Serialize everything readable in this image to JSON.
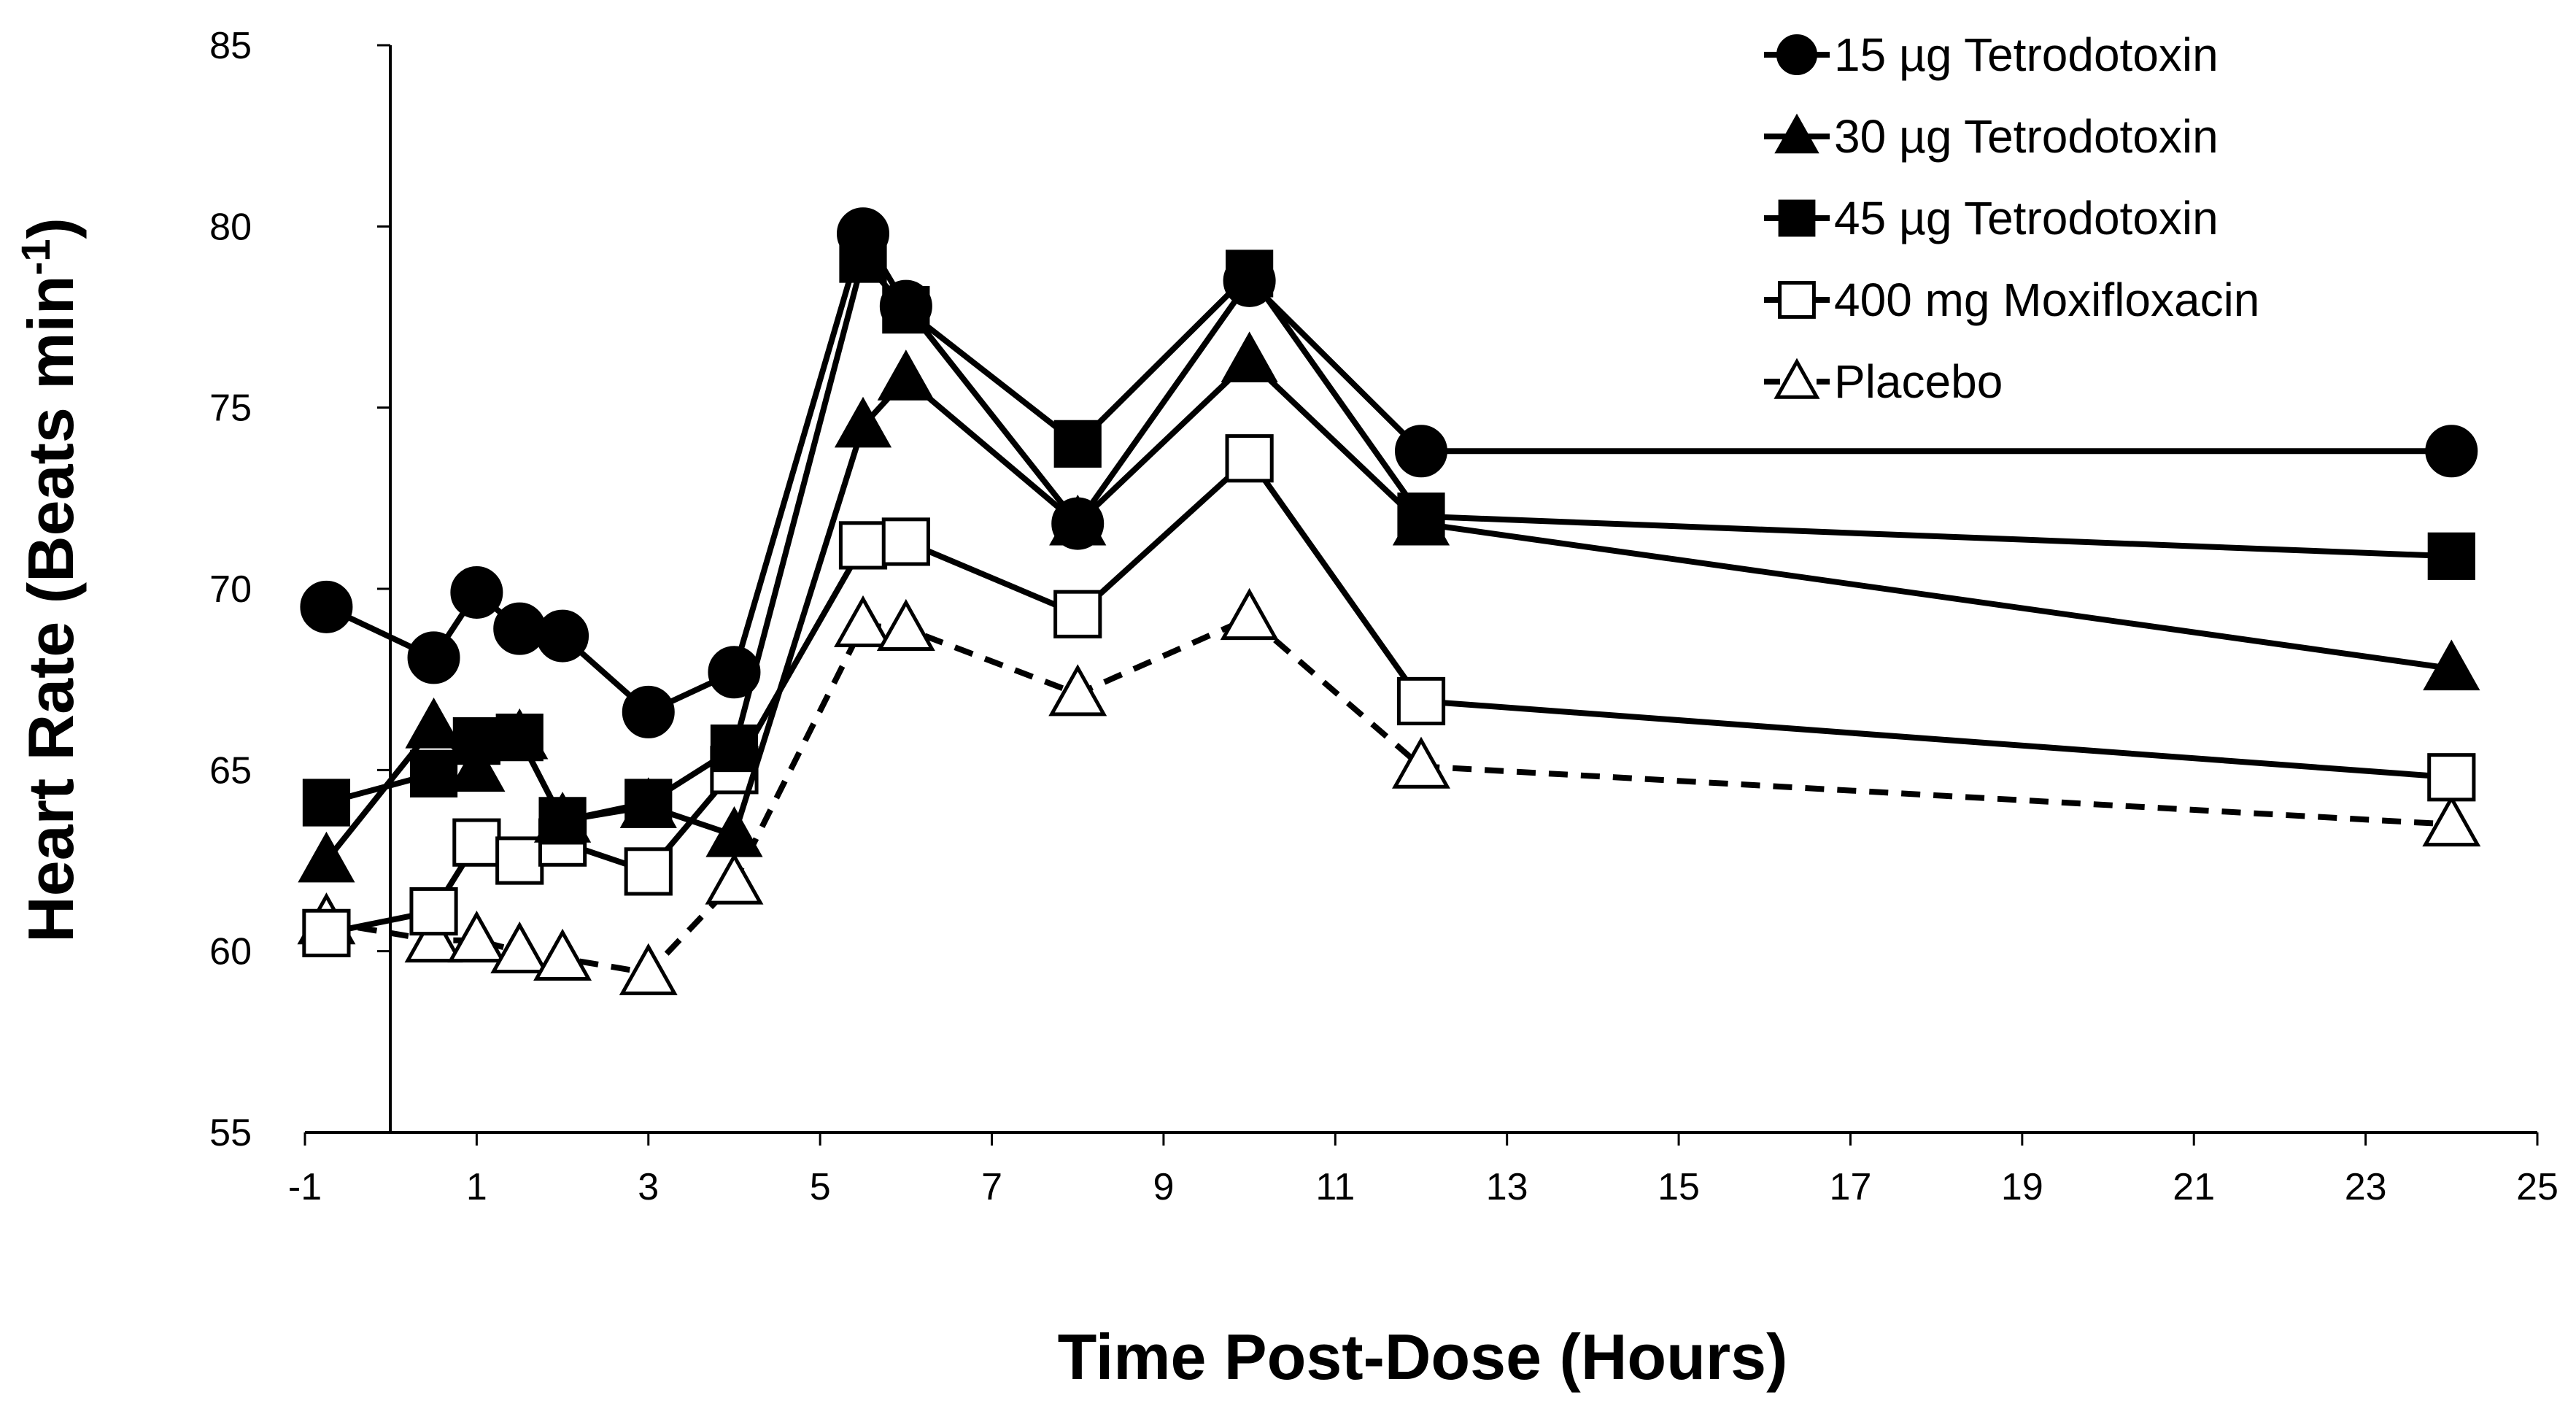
{
  "chart_data": {
    "type": "line",
    "title": "",
    "xlabel": "Time Post-Dose (Hours)",
    "ylabel": "Heart Rate (Beats min",
    "ylabel_superscript": "-1",
    "ylabel_close": ")",
    "xlim": [
      -1,
      25
    ],
    "ylim": [
      55,
      85
    ],
    "xticks": [
      -1,
      1,
      3,
      5,
      7,
      9,
      11,
      13,
      15,
      17,
      19,
      21,
      23,
      25
    ],
    "yticks": [
      55,
      60,
      65,
      70,
      75,
      80,
      85
    ],
    "x": [
      -0.75,
      0.5,
      1,
      1.5,
      2,
      3,
      4,
      5.5,
      6,
      8,
      10,
      12,
      24
    ],
    "legend_position": "top-right",
    "series": [
      {
        "name": "15 µg Tetrodotoxin",
        "marker": "circle",
        "filled": true,
        "dashed": false,
        "values": [
          69.5,
          68.1,
          69.9,
          68.9,
          68.7,
          66.6,
          67.7,
          79.8,
          77.8,
          71.8,
          78.5,
          73.8,
          73.8
        ]
      },
      {
        "name": "30 µg Tetrodotoxin",
        "marker": "triangle",
        "filled": true,
        "dashed": false,
        "values": [
          62.5,
          66.2,
          65.0,
          65.9,
          63.6,
          64.0,
          63.2,
          74.5,
          75.8,
          71.8,
          76.3,
          71.8,
          67.8
        ]
      },
      {
        "name": "45 µg Tetrodotoxin",
        "marker": "square",
        "filled": true,
        "dashed": false,
        "values": [
          64.1,
          64.9,
          65.8,
          65.9,
          63.6,
          64.1,
          65.6,
          79.1,
          77.7,
          74.0,
          78.7,
          72.0,
          70.9
        ]
      },
      {
        "name": "400 mg Moxifloxacin",
        "marker": "square",
        "filled": false,
        "dashed": false,
        "values": [
          60.5,
          61.1,
          63.0,
          62.5,
          63.0,
          62.2,
          65.0,
          71.2,
          71.3,
          69.3,
          73.6,
          66.9,
          64.8
        ]
      },
      {
        "name": "Placebo",
        "marker": "triangle",
        "filled": false,
        "dashed": true,
        "values": [
          60.8,
          60.3,
          60.3,
          60.0,
          59.8,
          59.4,
          61.9,
          69.0,
          68.9,
          67.1,
          69.2,
          65.1,
          63.5
        ]
      }
    ]
  }
}
